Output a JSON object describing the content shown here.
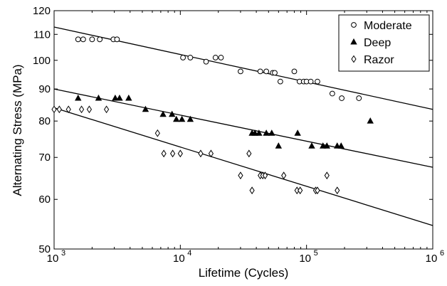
{
  "chart_data": {
    "type": "scatter",
    "title": "",
    "xlabel": "Lifetime (Cycles)",
    "ylabel": "Alternating Stress (MPa)",
    "x_scale": "log",
    "y_scale": "log",
    "xlim": [
      1000,
      1000000
    ],
    "ylim": [
      50,
      120
    ],
    "x_ticks": [
      {
        "value": 1000,
        "base": "10",
        "exp": "3"
      },
      {
        "value": 10000,
        "base": "10",
        "exp": "4"
      },
      {
        "value": 100000,
        "base": "10",
        "exp": "5"
      },
      {
        "value": 1000000,
        "base": "10",
        "exp": "6"
      }
    ],
    "y_ticks": [
      {
        "value": 50,
        "label": "50"
      },
      {
        "value": 60,
        "label": "60"
      },
      {
        "value": 70,
        "label": "70"
      },
      {
        "value": 80,
        "label": "80"
      },
      {
        "value": 90,
        "label": "90"
      },
      {
        "value": 100,
        "label": "100"
      },
      {
        "value": 110,
        "label": "110"
      },
      {
        "value": 120,
        "label": "120"
      }
    ],
    "grid": false,
    "legend_position": "top-right",
    "series": [
      {
        "name": "Moderate",
        "marker": "circle-open",
        "color": "#000000",
        "points": [
          [
            1550,
            108
          ],
          [
            1700,
            108
          ],
          [
            2000,
            108
          ],
          [
            2300,
            108
          ],
          [
            2950,
            108
          ],
          [
            3150,
            108
          ],
          [
            10500,
            101
          ],
          [
            12000,
            101
          ],
          [
            16000,
            99.5
          ],
          [
            19000,
            101
          ],
          [
            21000,
            101
          ],
          [
            30000,
            96
          ],
          [
            43000,
            96
          ],
          [
            48000,
            96
          ],
          [
            54000,
            95.5
          ],
          [
            56000,
            95.5
          ],
          [
            62000,
            92.5
          ],
          [
            80000,
            96
          ],
          [
            88000,
            92.5
          ],
          [
            95000,
            92.5
          ],
          [
            100000,
            92.5
          ],
          [
            108000,
            92.5
          ],
          [
            122000,
            92.5
          ],
          [
            160000,
            88.5
          ],
          [
            190000,
            87
          ],
          [
            260000,
            87
          ]
        ],
        "fit": {
          "x": [
            1000,
            1000000
          ],
          "y": [
            113,
            83.5
          ]
        }
      },
      {
        "name": "Deep",
        "marker": "triangle-filled",
        "color": "#000000",
        "points": [
          [
            1550,
            87
          ],
          [
            2250,
            87
          ],
          [
            3050,
            87
          ],
          [
            3300,
            87
          ],
          [
            3900,
            87
          ],
          [
            5300,
            83.5
          ],
          [
            7300,
            82
          ],
          [
            8600,
            82
          ],
          [
            9300,
            80.5
          ],
          [
            10300,
            80.5
          ],
          [
            12000,
            80.5
          ],
          [
            37000,
            76.5
          ],
          [
            39000,
            76.5
          ],
          [
            42000,
            76.5
          ],
          [
            48000,
            76.5
          ],
          [
            53000,
            76.5
          ],
          [
            60000,
            73
          ],
          [
            85000,
            76.5
          ],
          [
            110000,
            73
          ],
          [
            135000,
            73
          ],
          [
            145000,
            73
          ],
          [
            175000,
            73
          ],
          [
            188000,
            73
          ],
          [
            320000,
            80
          ]
        ],
        "fit": {
          "x": [
            1000,
            1000000
          ],
          "y": [
            90,
            67.5
          ]
        }
      },
      {
        "name": "Razor",
        "marker": "diamond-open",
        "color": "#000000",
        "points": [
          [
            1000,
            83.5
          ],
          [
            1100,
            83.5
          ],
          [
            1300,
            83.5
          ],
          [
            1650,
            83.5
          ],
          [
            1900,
            83.5
          ],
          [
            2600,
            83.5
          ],
          [
            6600,
            76.5
          ],
          [
            7400,
            71
          ],
          [
            8700,
            71
          ],
          [
            10000,
            71
          ],
          [
            14500,
            71
          ],
          [
            17500,
            71
          ],
          [
            30000,
            65.5
          ],
          [
            35000,
            71
          ],
          [
            37000,
            62
          ],
          [
            43000,
            65.5
          ],
          [
            45000,
            65.5
          ],
          [
            47000,
            65.5
          ],
          [
            66000,
            65.5
          ],
          [
            84000,
            62
          ],
          [
            89000,
            62
          ],
          [
            118000,
            62
          ],
          [
            122000,
            62
          ],
          [
            145000,
            65.5
          ],
          [
            175000,
            62
          ]
        ],
        "fit": {
          "x": [
            1000,
            1000000
          ],
          "y": [
            84,
            54.5
          ]
        }
      }
    ]
  }
}
